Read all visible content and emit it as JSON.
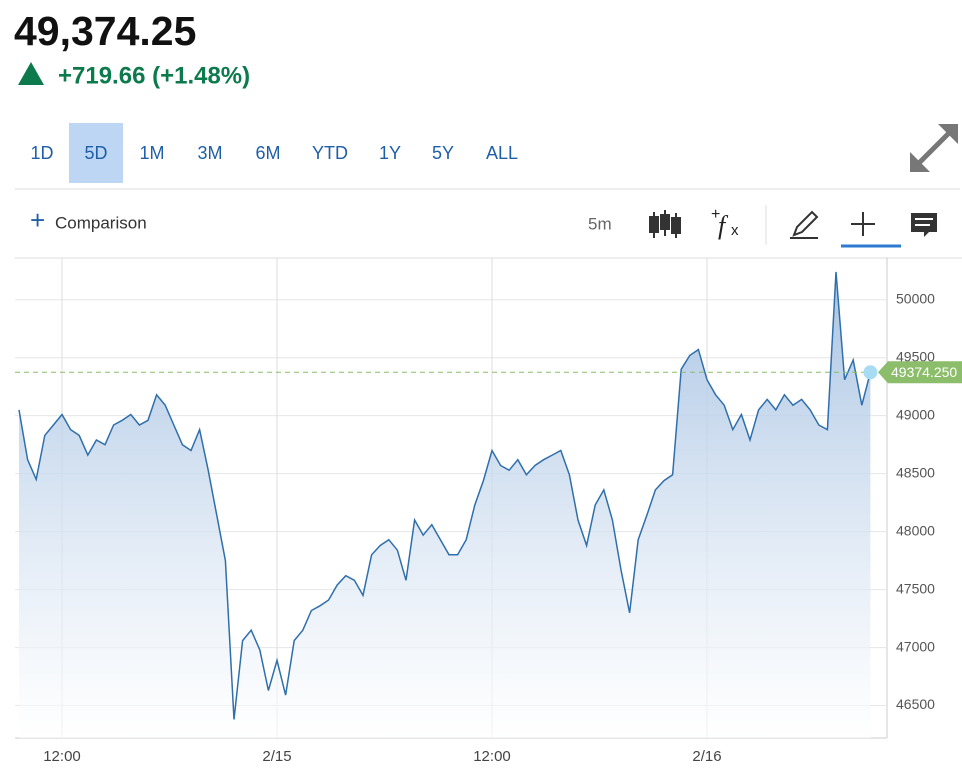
{
  "header": {
    "price": "49,374.25",
    "change": "+719.66 (+1.48%)"
  },
  "range_tabs": {
    "items": [
      "1D",
      "5D",
      "1M",
      "3M",
      "6M",
      "YTD",
      "1Y",
      "5Y",
      "ALL"
    ],
    "active": "5D"
  },
  "toolbar": {
    "comparison": "Comparison",
    "interval": "5m"
  },
  "chart_data": {
    "type": "area",
    "categories": [
      null,
      null,
      null,
      null,
      null,
      "12:00",
      null,
      null,
      null,
      null,
      null,
      null,
      null,
      null,
      null,
      null,
      null,
      null,
      null,
      null,
      null,
      null,
      null,
      null,
      null,
      null,
      null,
      null,
      null,
      null,
      "2/15",
      null,
      null,
      null,
      null,
      null,
      null,
      null,
      null,
      null,
      null,
      null,
      null,
      null,
      null,
      null,
      null,
      null,
      null,
      null,
      null,
      null,
      null,
      null,
      null,
      "12:00",
      null,
      null,
      null,
      null,
      null,
      null,
      null,
      null,
      null,
      null,
      null,
      null,
      null,
      null,
      null,
      null,
      null,
      null,
      null,
      null,
      null,
      null,
      null,
      null,
      "2/16",
      null,
      null,
      null,
      null,
      null,
      null,
      null,
      null,
      null,
      null,
      null,
      null,
      null,
      null,
      null,
      null,
      null,
      null,
      null
    ],
    "values": [
      49050,
      48620,
      48450,
      48830,
      48920,
      49010,
      48880,
      48830,
      48660,
      48790,
      48750,
      48920,
      48960,
      49010,
      48920,
      48960,
      49180,
      49090,
      48920,
      48750,
      48700,
      48880,
      48530,
      48140,
      47750,
      46380,
      47060,
      47150,
      46980,
      46630,
      46890,
      46590,
      47060,
      47150,
      47320,
      47360,
      47410,
      47540,
      47620,
      47580,
      47450,
      47800,
      47880,
      47930,
      47840,
      47580,
      48100,
      47970,
      48060,
      47930,
      47800,
      47800,
      47930,
      48230,
      48440,
      48700,
      48570,
      48530,
      48620,
      48490,
      48570,
      48620,
      48660,
      48700,
      48490,
      48100,
      47880,
      48230,
      48360,
      48100,
      47670,
      47300,
      47930,
      48140,
      48360,
      48440,
      48490,
      49400,
      49520,
      49570,
      49310,
      49180,
      49090,
      48880,
      49010,
      48790,
      49050,
      49140,
      49050,
      49180,
      49090,
      49140,
      49050,
      48920,
      48880,
      50240,
      49310,
      49480,
      49090,
      49374.25
    ],
    "color": "#2f6fab",
    "ylim": [
      46220,
      50360
    ],
    "yticks": [
      46500,
      47000,
      47500,
      48000,
      48500,
      49000,
      49500,
      50000
    ],
    "grid": true,
    "last_price": {
      "value": 49374.25,
      "label": "49374.250"
    }
  }
}
